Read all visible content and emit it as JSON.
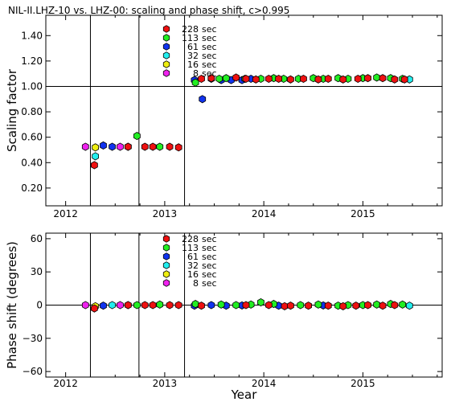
{
  "title": "NIL-II.LHZ-10 vs. LHZ-00: scaling and phase shift, c>0.995",
  "colors": {
    "228 sec": "#ee1111",
    "113 sec": "#22ee22",
    "61 sec": "#1133ee",
    "32 sec": "#22eeee",
    "16 sec": "#eeee11",
    "8 sec": "#ee22ee"
  },
  "chart_data": [
    {
      "type": "scatter",
      "ylabel": "Scaling factor",
      "xlabel": "",
      "xlim": [
        2011.8,
        2015.8
      ],
      "ylim": [
        0.06,
        1.56
      ],
      "x_ticks": [
        {
          "value": 2012,
          "label": "2012"
        },
        {
          "value": 2013,
          "label": "2013"
        },
        {
          "value": 2014,
          "label": "2014"
        },
        {
          "value": 2015,
          "label": "2015"
        }
      ],
      "y_ticks": [
        {
          "value": 0.2,
          "label": "0.20"
        },
        {
          "value": 0.4,
          "label": "0.40"
        },
        {
          "value": 0.6,
          "label": "0.60"
        },
        {
          "value": 0.8,
          "label": "0.80"
        },
        {
          "value": 1.0,
          "label": "1.00"
        },
        {
          "value": 1.2,
          "label": "1.20"
        },
        {
          "value": 1.4,
          "label": "1.40"
        }
      ],
      "hline": 1.0,
      "vlines": [
        2012.25,
        2012.74,
        2013.2
      ],
      "legend": [
        "228 sec",
        "113 sec",
        "61 sec",
        "32 sec",
        "16 sec",
        "8 sec"
      ],
      "series": [
        {
          "name": "8 sec",
          "points": [
            [
              2012.2,
              0.525
            ],
            [
              2012.55,
              0.525
            ]
          ]
        },
        {
          "name": "16 sec",
          "points": [
            [
              2012.3,
              0.52
            ]
          ]
        },
        {
          "name": "32 sec",
          "points": [
            [
              2012.3,
              0.45
            ],
            [
              2012.63,
              0.525
            ],
            [
              2015.47,
              1.055
            ]
          ]
        },
        {
          "name": "61 sec",
          "points": [
            [
              2012.38,
              0.535
            ],
            [
              2012.47,
              0.525
            ],
            [
              2013.3,
              1.05
            ],
            [
              2013.38,
              0.9
            ],
            [
              2013.47,
              1.06
            ],
            [
              2013.57,
              1.05
            ],
            [
              2013.67,
              1.05
            ],
            [
              2013.78,
              1.05
            ],
            [
              2013.87,
              1.06
            ]
          ]
        },
        {
          "name": "113 sec",
          "points": [
            [
              2012.72,
              0.61
            ],
            [
              2012.95,
              0.525
            ],
            [
              2013.31,
              1.03
            ],
            [
              2013.55,
              1.06
            ],
            [
              2013.62,
              1.065
            ],
            [
              2013.81,
              1.06
            ],
            [
              2013.97,
              1.06
            ],
            [
              2014.1,
              1.065
            ],
            [
              2014.2,
              1.06
            ],
            [
              2014.35,
              1.06
            ],
            [
              2014.5,
              1.065
            ],
            [
              2014.6,
              1.06
            ],
            [
              2014.75,
              1.065
            ],
            [
              2014.85,
              1.06
            ],
            [
              2015.0,
              1.065
            ],
            [
              2015.14,
              1.07
            ],
            [
              2015.28,
              1.065
            ],
            [
              2015.4,
              1.06
            ]
          ]
        },
        {
          "name": "228 sec",
          "points": [
            [
              2012.29,
              0.38
            ],
            [
              2012.63,
              0.525
            ],
            [
              2012.8,
              0.525
            ],
            [
              2012.88,
              0.525
            ],
            [
              2013.05,
              0.525
            ],
            [
              2013.14,
              0.52
            ],
            [
              2013.37,
              1.06
            ],
            [
              2013.47,
              1.065
            ],
            [
              2013.72,
              1.07
            ],
            [
              2013.82,
              1.06
            ],
            [
              2013.92,
              1.055
            ],
            [
              2014.05,
              1.06
            ],
            [
              2014.15,
              1.06
            ],
            [
              2014.27,
              1.055
            ],
            [
              2014.4,
              1.06
            ],
            [
              2014.55,
              1.055
            ],
            [
              2014.65,
              1.06
            ],
            [
              2014.8,
              1.055
            ],
            [
              2014.95,
              1.06
            ],
            [
              2015.05,
              1.065
            ],
            [
              2015.2,
              1.065
            ],
            [
              2015.32,
              1.055
            ],
            [
              2015.42,
              1.055
            ]
          ]
        }
      ]
    },
    {
      "type": "scatter",
      "ylabel": "Phase shift (degrees)",
      "xlabel": "Year",
      "xlim": [
        2011.8,
        2015.8
      ],
      "ylim": [
        -65,
        65
      ],
      "x_ticks": [
        {
          "value": 2012,
          "label": "2012"
        },
        {
          "value": 2013,
          "label": "2013"
        },
        {
          "value": 2014,
          "label": "2014"
        },
        {
          "value": 2015,
          "label": "2015"
        }
      ],
      "y_ticks": [
        {
          "value": -60,
          "label": "−60"
        },
        {
          "value": -30,
          "label": "−30"
        },
        {
          "value": 0,
          "label": "0"
        },
        {
          "value": 30,
          "label": "30"
        },
        {
          "value": 60,
          "label": "60"
        }
      ],
      "hline": 0,
      "vlines": [
        2012.25,
        2012.74,
        2013.2
      ],
      "legend": [
        "228 sec",
        "113 sec",
        "61 sec",
        "32 sec",
        "16 sec",
        "8 sec"
      ],
      "series": [
        {
          "name": "8 sec",
          "points": [
            [
              2012.2,
              0
            ],
            [
              2012.55,
              0
            ]
          ]
        },
        {
          "name": "16 sec",
          "points": [
            [
              2012.3,
              -1
            ]
          ]
        },
        {
          "name": "32 sec",
          "points": [
            [
              2012.47,
              0
            ],
            [
              2012.63,
              0
            ],
            [
              2015.47,
              -0.5
            ]
          ]
        },
        {
          "name": "61 sec",
          "points": [
            [
              2012.38,
              -0.5
            ],
            [
              2013.3,
              -0.5
            ],
            [
              2013.47,
              0
            ],
            [
              2013.62,
              -0.5
            ],
            [
              2013.78,
              -0.3
            ],
            [
              2014.15,
              -0.5
            ],
            [
              2014.6,
              -0.3
            ]
          ]
        },
        {
          "name": "113 sec",
          "points": [
            [
              2012.72,
              0
            ],
            [
              2012.95,
              0.5
            ],
            [
              2013.31,
              1
            ],
            [
              2013.57,
              0.5
            ],
            [
              2013.72,
              0
            ],
            [
              2013.87,
              0.5
            ],
            [
              2013.97,
              2.5
            ],
            [
              2014.1,
              1
            ],
            [
              2014.37,
              0
            ],
            [
              2014.55,
              0.5
            ],
            [
              2014.75,
              -0.5
            ],
            [
              2014.85,
              0
            ],
            [
              2015.0,
              0
            ],
            [
              2015.14,
              0.5
            ],
            [
              2015.28,
              1
            ],
            [
              2015.4,
              0.5
            ]
          ]
        },
        {
          "name": "228 sec",
          "points": [
            [
              2012.29,
              -3
            ],
            [
              2012.63,
              0
            ],
            [
              2012.8,
              0
            ],
            [
              2012.88,
              0
            ],
            [
              2013.05,
              0
            ],
            [
              2013.14,
              0
            ],
            [
              2013.37,
              -0.5
            ],
            [
              2013.82,
              0
            ],
            [
              2014.05,
              0
            ],
            [
              2014.21,
              -1
            ],
            [
              2014.27,
              -0.5
            ],
            [
              2014.45,
              -0.5
            ],
            [
              2014.65,
              -0.5
            ],
            [
              2014.8,
              -1
            ],
            [
              2014.93,
              -0.5
            ],
            [
              2015.05,
              0
            ],
            [
              2015.2,
              -0.5
            ],
            [
              2015.32,
              0
            ]
          ]
        }
      ]
    }
  ]
}
